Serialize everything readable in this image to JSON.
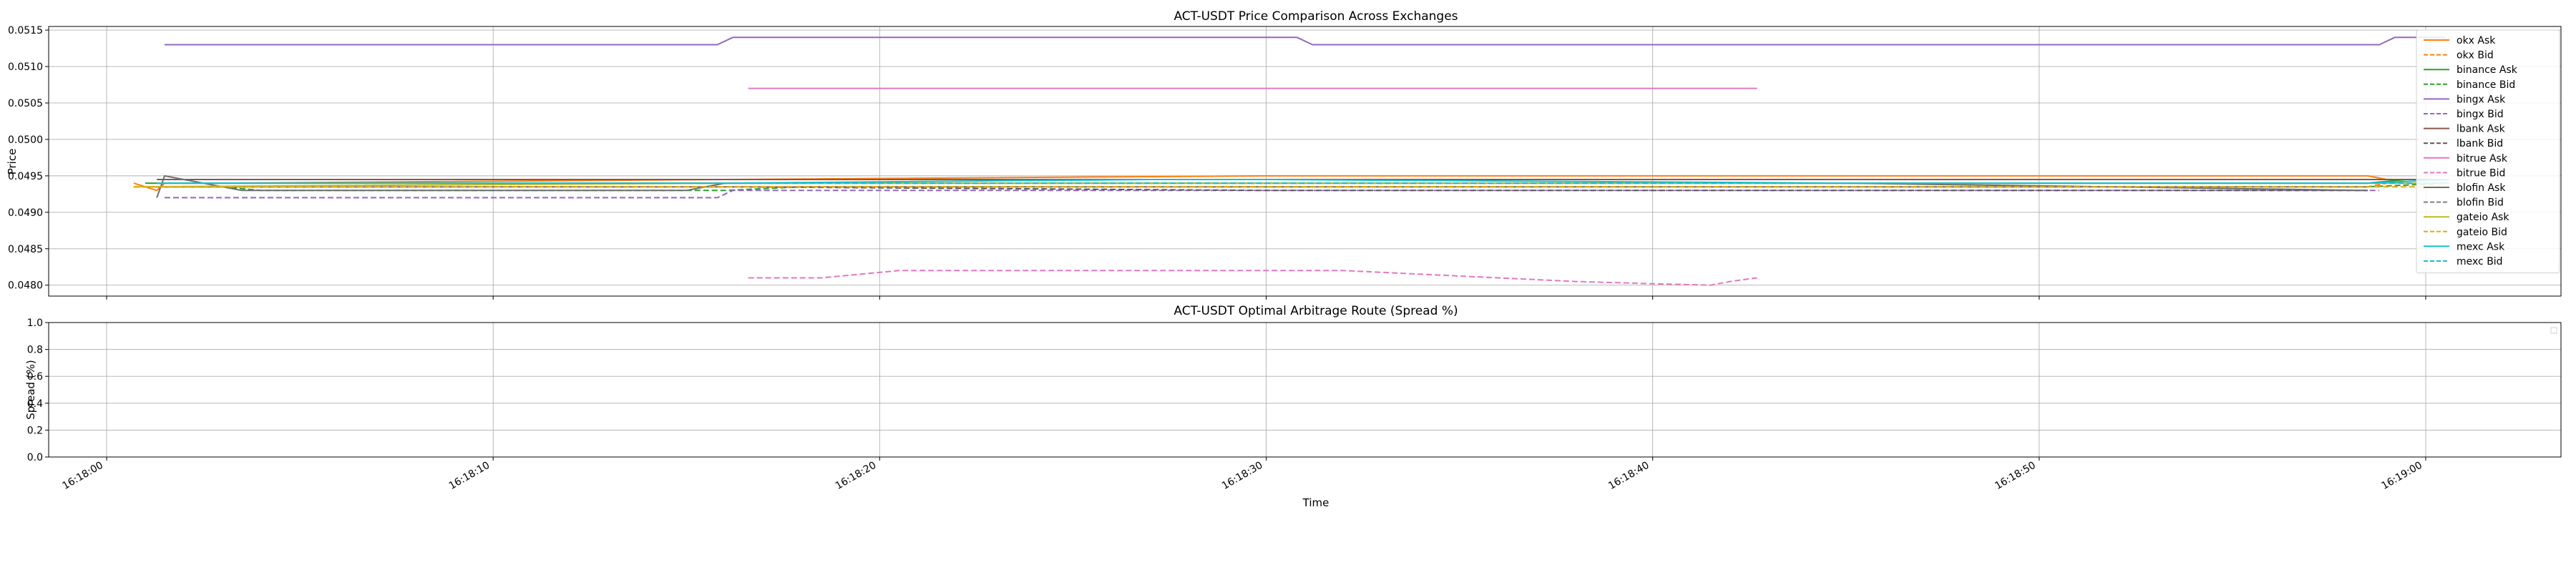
{
  "chart_data": [
    {
      "type": "line",
      "title": "ACT-USDT Price Comparison Across Exchanges",
      "xlabel": "",
      "ylabel": "Price",
      "ylim": [
        0.04785,
        0.05155
      ],
      "xlim": [
        "16:17:58.5",
        "16:19:03.5"
      ],
      "grid": true,
      "legend": "right",
      "yticks": [
        "0.0480",
        "0.0485",
        "0.0490",
        "0.0495",
        "0.0500",
        "0.0505",
        "0.0510",
        "0.0515"
      ],
      "series": [
        {
          "name": "okx Ask",
          "color": "#ff7f0e",
          "style": "solid",
          "x": [
            "16:18:00.7",
            "16:18:01.3",
            "16:18:01.5",
            "16:18:03",
            "16:18:16",
            "16:18:30",
            "16:18:45",
            "16:18:58.5",
            "16:18:59",
            "16:19:00.6"
          ],
          "y": [
            0.0494,
            0.0493,
            0.0494,
            0.0494,
            0.04945,
            0.0495,
            0.0495,
            0.0495,
            0.04945,
            0.04945
          ]
        },
        {
          "name": "okx Bid",
          "color": "#ff7f0e",
          "style": "dashed",
          "x": [
            "16:18:00.7",
            "16:18:01.3",
            "16:18:02",
            "16:18:16",
            "16:18:30",
            "16:18:45",
            "16:18:58.5",
            "16:18:59",
            "16:19:00.6"
          ],
          "y": [
            0.04935,
            0.04935,
            0.04935,
            0.04935,
            0.04935,
            0.04935,
            0.04935,
            0.0494,
            0.0494
          ]
        },
        {
          "name": "binance Ask",
          "color": "#2ca02c",
          "style": "solid",
          "x": [
            "16:18:01",
            "16:18:02",
            "16:18:16",
            "16:18:30",
            "16:18:45",
            "16:18:58.5",
            "16:18:59.5",
            "16:19:00.6"
          ],
          "y": [
            0.0494,
            0.0494,
            0.0494,
            0.0494,
            0.0494,
            0.0494,
            0.04945,
            0.04945
          ]
        },
        {
          "name": "binance Bid",
          "color": "#2ca02c",
          "style": "dashed",
          "x": [
            "16:18:01",
            "16:18:03",
            "16:18:04",
            "16:18:16",
            "16:18:18",
            "16:18:30",
            "16:18:45",
            "16:18:58.5",
            "16:19:00.6"
          ],
          "y": [
            0.04935,
            0.04935,
            0.0493,
            0.0493,
            0.04935,
            0.04935,
            0.04935,
            0.04935,
            0.0494
          ]
        },
        {
          "name": "bingx Ask",
          "color": "#9467bd",
          "style": "solid",
          "x": [
            "16:18:01.5",
            "16:18:15.8",
            "16:18:16.2",
            "16:18:30.8",
            "16:18:31.2",
            "16:18:58.8",
            "16:18:59.2",
            "16:19:00.5"
          ],
          "y": [
            0.0513,
            0.0513,
            0.0514,
            0.0514,
            0.0513,
            0.0513,
            0.0514,
            0.0514
          ]
        },
        {
          "name": "bingx Bid",
          "color": "#9467bd",
          "style": "dashed",
          "x": [
            "16:18:01.5",
            "16:18:15.8",
            "16:18:16.2",
            "16:18:30",
            "16:18:45",
            "16:18:58.8"
          ],
          "y": [
            0.0492,
            0.0492,
            0.0493,
            0.0493,
            0.0493,
            0.0493
          ]
        },
        {
          "name": "lbank Ask",
          "color": "#8c564b",
          "style": "solid",
          "x": [
            "16:18:01.3",
            "16:18:16",
            "16:18:30",
            "16:18:45",
            "16:18:58.5",
            "16:19:00.6"
          ],
          "y": [
            0.04945,
            0.04945,
            0.04945,
            0.04945,
            0.04945,
            0.04945
          ]
        },
        {
          "name": "lbank Bid",
          "color": "#595959",
          "style": "dashed",
          "x": [
            "16:18:01.3",
            "16:18:16",
            "16:18:30",
            "16:18:45",
            "16:18:58.5"
          ],
          "y": [
            0.04935,
            0.04935,
            0.0493,
            0.0493,
            0.0493
          ]
        },
        {
          "name": "bitrue Ask",
          "color": "#e377c2",
          "style": "solid",
          "x": [
            "16:18:16.6",
            "16:18:42.7"
          ],
          "y": [
            0.0507,
            0.0507
          ]
        },
        {
          "name": "bitrue Bid",
          "color": "#e377c2",
          "style": "dashed",
          "x": [
            "16:18:16.6",
            "16:18:18.5",
            "16:18:19.5",
            "16:18:20.5",
            "16:18:25",
            "16:18:30",
            "16:18:32",
            "16:18:34",
            "16:18:36",
            "16:18:38",
            "16:18:40",
            "16:18:41.5",
            "16:18:42",
            "16:18:42.7"
          ],
          "y": [
            0.0481,
            0.0481,
            0.04815,
            0.0482,
            0.0482,
            0.0482,
            0.0482,
            0.04815,
            0.0481,
            0.04805,
            0.04802,
            0.048,
            0.04805,
            0.0481
          ]
        },
        {
          "name": "blofin Ask",
          "color": "#6e6e6e",
          "style": "solid",
          "x": [
            "16:18:01.3",
            "16:18:01.5",
            "16:18:02.5",
            "16:18:03.5",
            "16:18:04",
            "16:18:15",
            "16:18:16",
            "16:18:27",
            "16:18:30",
            "16:18:45",
            "16:18:58.5"
          ],
          "y": [
            0.0492,
            0.0495,
            0.0494,
            0.0493,
            0.0493,
            0.0493,
            0.0494,
            0.0494,
            0.0494,
            0.0494,
            0.0493
          ]
        },
        {
          "name": "blofin Bid",
          "color": "#7f7f7f",
          "style": "dashed",
          "x": [
            "16:18:01.3",
            "16:18:16",
            "16:18:30",
            "16:18:45",
            "16:18:58.5"
          ],
          "y": [
            0.04935,
            0.04935,
            0.04935,
            0.04935,
            0.04935
          ]
        },
        {
          "name": "gateio Ask",
          "color": "#bcbd22",
          "style": "solid",
          "x": [
            "16:18:00.7",
            "16:18:16",
            "16:18:30",
            "16:18:45",
            "16:18:58.5",
            "16:19:00.6"
          ],
          "y": [
            0.04935,
            0.0494,
            0.0494,
            0.0494,
            0.0494,
            0.0494
          ]
        },
        {
          "name": "gateio Bid",
          "color": "#e6a817",
          "style": "dashed",
          "x": [
            "16:18:00.7",
            "16:18:16",
            "16:18:30",
            "16:18:45",
            "16:18:58.5",
            "16:19:00.6"
          ],
          "y": [
            0.04935,
            0.04935,
            0.04935,
            0.04935,
            0.04935,
            0.04935
          ]
        },
        {
          "name": "mexc Ask",
          "color": "#17becf",
          "style": "solid",
          "x": [
            "16:18:01.3",
            "16:18:16",
            "16:18:27",
            "16:18:30",
            "16:18:45",
            "16:18:58.5",
            "16:19:00.6"
          ],
          "y": [
            0.0494,
            0.0494,
            0.04945,
            0.04945,
            0.0494,
            0.0494,
            0.04945
          ]
        },
        {
          "name": "mexc Bid",
          "color": "#17becf",
          "style": "dashed",
          "x": [
            "16:18:01.3",
            "16:18:16",
            "16:18:30",
            "16:18:45",
            "16:18:58.5",
            "16:19:00.6"
          ],
          "y": [
            0.0494,
            0.0494,
            0.0494,
            0.0494,
            0.0494,
            0.0494
          ]
        }
      ]
    },
    {
      "type": "line",
      "title": "ACT-USDT Optimal Arbitrage Route (Spread %)",
      "xlabel": "Time",
      "ylabel": "Spread (%)",
      "ylim": [
        0.0,
        1.0
      ],
      "xlim": [
        "16:17:58.5",
        "16:19:03.5"
      ],
      "grid": true,
      "legend": "top-right",
      "yticks": [
        "0.0",
        "0.2",
        "0.4",
        "0.6",
        "0.8",
        "1.0"
      ],
      "xticks": [
        "16:18:00",
        "16:18:10",
        "16:18:20",
        "16:18:30",
        "16:18:40",
        "16:18:50",
        "16:19:00"
      ],
      "series": []
    }
  ]
}
